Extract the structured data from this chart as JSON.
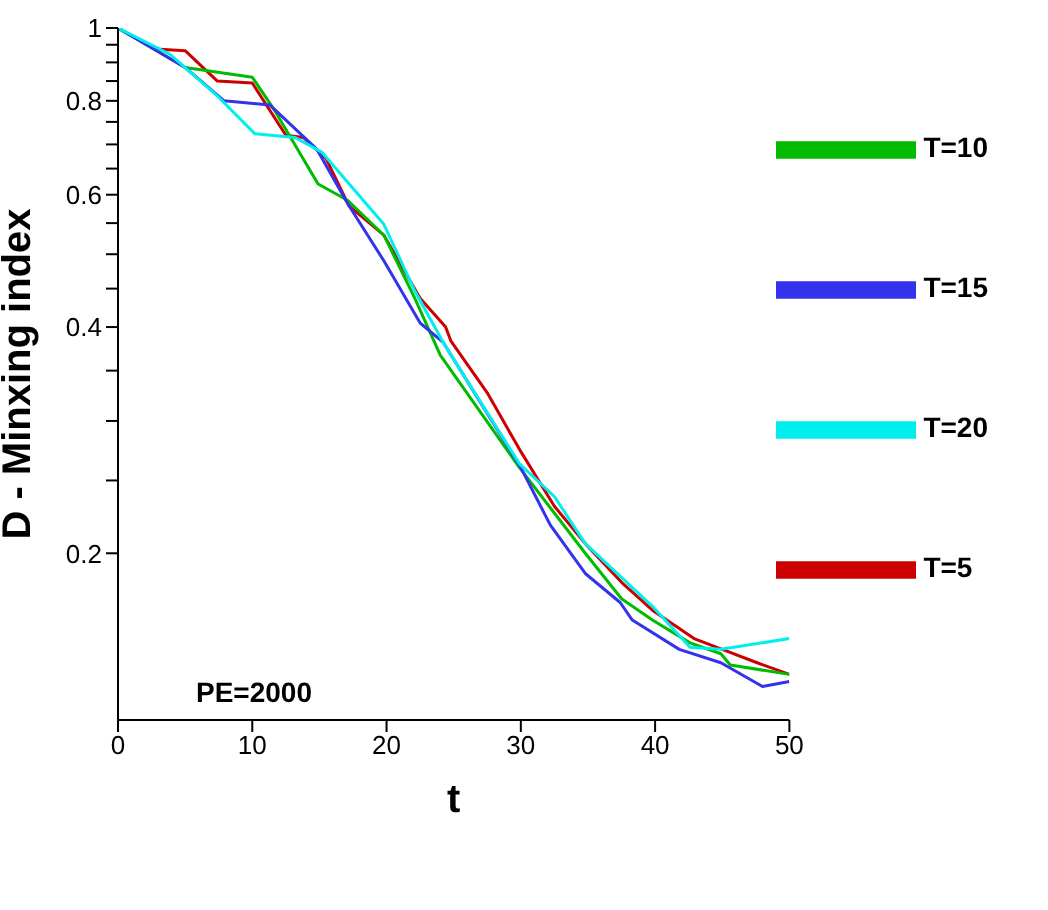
{
  "chart_data": {
    "type": "line",
    "xlabel": "t",
    "ylabel": "D - Minxing index",
    "log": "y",
    "xlim": [
      0,
      50
    ],
    "xticks": [
      0,
      10,
      20,
      30,
      40,
      50
    ],
    "ylim": [
      0.12,
      1
    ],
    "yticks": [
      0.2,
      {
        "value": 0.25,
        "label": null
      },
      {
        "value": 0.3,
        "label": null
      },
      {
        "value": 0.35,
        "label": null
      },
      0.4,
      {
        "value": 0.45,
        "label": null
      },
      {
        "value": 0.5,
        "label": null
      },
      {
        "value": 0.55,
        "label": null
      },
      0.6,
      {
        "value": 0.65,
        "label": null
      },
      {
        "value": 0.7,
        "label": null
      },
      {
        "value": 0.75,
        "label": null
      },
      0.8,
      {
        "value": 0.85,
        "label": null
      },
      {
        "value": 0.9,
        "label": null
      },
      {
        "value": 0.95,
        "label": null
      },
      1
    ],
    "grid": false,
    "legend": "top right",
    "marker": "none",
    "line_style": "solid",
    "annotations": [
      "PE=2000"
    ],
    "series": [
      {
        "name": "T=5",
        "color": "#cc0000",
        "x": [
          0,
          2.8,
          5,
          7.4,
          10,
          12.5,
          13.8,
          15.5,
          17.2,
          19.8,
          22.5,
          24.4,
          24.8,
          27.5,
          29.9,
          32.5,
          34.8,
          37.5,
          39.8,
          42.9,
          45,
          47.6,
          50
        ],
        "values": [
          1,
          0.938,
          0.933,
          0.85,
          0.845,
          0.72,
          0.715,
          0.67,
          0.58,
          0.53,
          0.437,
          0.4,
          0.383,
          0.327,
          0.275,
          0.231,
          0.206,
          0.183,
          0.168,
          0.154,
          0.149,
          0.143,
          0.138
        ]
      },
      {
        "name": "T=10",
        "color": "#00bb00",
        "x": [
          0,
          5,
          10,
          11.7,
          14.9,
          17.1,
          19.8,
          22.1,
          24,
          29.9,
          34.8,
          37.5,
          39.8,
          42.6,
          44.9,
          45.6,
          50
        ],
        "values": [
          1,
          0.886,
          0.86,
          0.775,
          0.62,
          0.59,
          0.53,
          0.437,
          0.367,
          0.26,
          0.2,
          0.174,
          0.163,
          0.152,
          0.147,
          0.142,
          0.138
        ]
      },
      {
        "name": "T=15",
        "color": "#3333ee",
        "x": [
          0,
          5,
          7.9,
          11.3,
          14.8,
          17.1,
          19.8,
          22.5,
          24.2,
          30,
          32.2,
          34.8,
          37.4,
          38.3,
          41.8,
          44.9,
          48,
          50
        ],
        "values": [
          1,
          0.886,
          0.8,
          0.79,
          0.69,
          0.584,
          0.49,
          0.405,
          0.382,
          0.26,
          0.218,
          0.188,
          0.172,
          0.163,
          0.149,
          0.143,
          0.133,
          0.135
        ]
      },
      {
        "name": "T=20",
        "color": "#00eeee",
        "x": [
          0,
          3.9,
          7.4,
          10.2,
          13.2,
          15.2,
          19.8,
          22.1,
          24.2,
          29.9,
          32.5,
          34.8,
          39.8,
          42.6,
          44.9,
          50
        ],
        "values": [
          1,
          0.922,
          0.812,
          0.723,
          0.715,
          0.683,
          0.548,
          0.447,
          0.382,
          0.263,
          0.238,
          0.206,
          0.17,
          0.15,
          0.149,
          0.154
        ]
      }
    ]
  }
}
